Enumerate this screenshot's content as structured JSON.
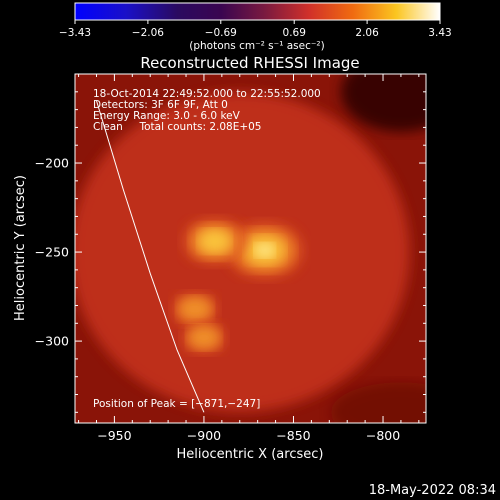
{
  "chart_data": {
    "type": "heatmap",
    "title": "Reconstructed RHESSI Image",
    "xlabel": "Heliocentric X (arcsec)",
    "ylabel": "Heliocentric Y (arcsec)",
    "xlim": [
      -972,
      -776
    ],
    "ylim": [
      -346,
      -150
    ],
    "xticks": [
      -950,
      -900,
      -850,
      -800
    ],
    "xtick_labels": [
      "−950",
      "−900",
      "−850",
      "−800"
    ],
    "yticks": [
      -200,
      -250,
      -300
    ],
    "ytick_labels": [
      "−200",
      "−250",
      "−300"
    ],
    "colorbar": {
      "colormap": "black-purple-red-orange-yellow-white",
      "min": -3.43,
      "max": 3.43,
      "ticks": [
        -3.43,
        -2.06,
        -0.69,
        0.69,
        2.06,
        3.43
      ],
      "tick_labels": [
        "−3.43",
        "−2.06",
        "−0.69",
        "0.69",
        "2.06",
        "3.43"
      ],
      "units": "(photons cm⁻² s⁻¹ asec⁻²)"
    },
    "annotations": [
      "18-Oct-2014 22:49:52.000 to 22:55:52.000",
      "Detectors: 3F 6F 9F, Att 0",
      "Energy Range: 3.0 - 6.0 keV",
      "Clean     Total counts: 2.08E+05"
    ],
    "peak_label": "Position of Peak = [−871,−247]",
    "sources": [
      {
        "x": -866,
        "y": -249,
        "peak": 1.0
      },
      {
        "x": -894,
        "y": -244,
        "peak": 0.78
      },
      {
        "x": -905,
        "y": -282,
        "peak": 0.48
      },
      {
        "x": -900,
        "y": -298,
        "peak": 0.45
      }
    ],
    "limb": [
      [
        -960,
        -165
      ],
      [
        -945,
        -215
      ],
      [
        -930,
        -262
      ],
      [
        -915,
        -305
      ],
      [
        -900,
        -340
      ]
    ],
    "grid": false,
    "legend": "none"
  },
  "footer": {
    "date": "18-May-2022 08:34"
  }
}
